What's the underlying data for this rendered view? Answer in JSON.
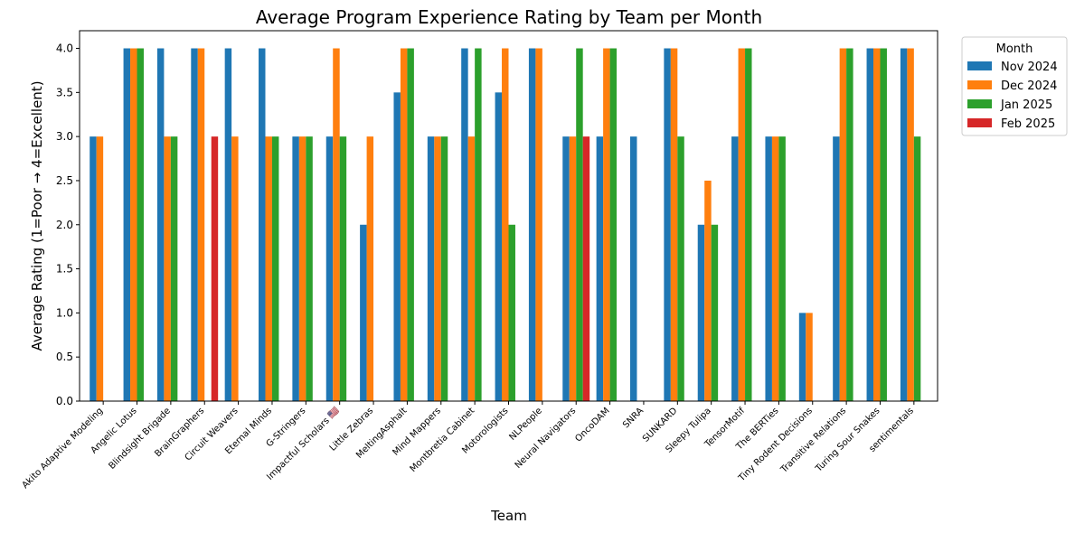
{
  "chart_data": {
    "type": "bar",
    "title": "Average Program Experience Rating by Team per Month",
    "xlabel": "Team",
    "ylabel": "Average Rating (1=Poor → 4=Excellent)",
    "ylim": [
      0,
      4.2
    ],
    "yticks": [
      "0.0",
      "0.5",
      "1.0",
      "1.5",
      "2.0",
      "2.5",
      "3.0",
      "3.5",
      "4.0"
    ],
    "legend": {
      "title": "Month",
      "placement": "outside-top-right"
    },
    "grid": false,
    "categories": [
      "Akito Adaptive Modeling",
      "Angelic Lotus",
      "Blindsight Brigade",
      "BrainGraphers",
      "Circuit Weavers",
      "Eternal Minds",
      "G-Stringers",
      "Impactful Scholars 🇺🇸",
      "Little Zebras",
      "MeltingAsphalt",
      "Mind Mappers",
      "Montbretia Cabinet",
      "Motorologists",
      "NLPeople",
      "Neural Navigators",
      "OncoDAM",
      "SNRA",
      "SUNKARD",
      "Sleepy Tulipa",
      "TensorMotif",
      "The BERTies",
      "Tiny Rodent Decisions",
      "Transitive Relations",
      "Turing Sour Snakes",
      "sentimentals"
    ],
    "series": [
      {
        "name": "Nov 2024",
        "color": "#1f77b4",
        "values": [
          3,
          4,
          4,
          4,
          4,
          4,
          3,
          3,
          2,
          3.5,
          3,
          4,
          3.5,
          4,
          3,
          3,
          3,
          4,
          2,
          3,
          3,
          1,
          3,
          4,
          4
        ]
      },
      {
        "name": "Dec 2024",
        "color": "#ff7f0e",
        "values": [
          3,
          4,
          3,
          4,
          3,
          3,
          3,
          4,
          3,
          4,
          3,
          3,
          4,
          4,
          3,
          4,
          null,
          4,
          2.5,
          4,
          3,
          1,
          4,
          4,
          4
        ]
      },
      {
        "name": "Jan 2025",
        "color": "#2ca02c",
        "values": [
          null,
          4,
          3,
          null,
          null,
          3,
          3,
          3,
          null,
          4,
          3,
          4,
          2,
          null,
          4,
          4,
          null,
          3,
          2,
          4,
          3,
          null,
          4,
          4,
          3
        ]
      },
      {
        "name": "Feb 2025",
        "color": "#d62728",
        "values": [
          null,
          null,
          null,
          3,
          null,
          null,
          null,
          null,
          null,
          null,
          null,
          null,
          null,
          null,
          3,
          null,
          null,
          null,
          null,
          null,
          null,
          null,
          null,
          null,
          null
        ]
      }
    ]
  }
}
